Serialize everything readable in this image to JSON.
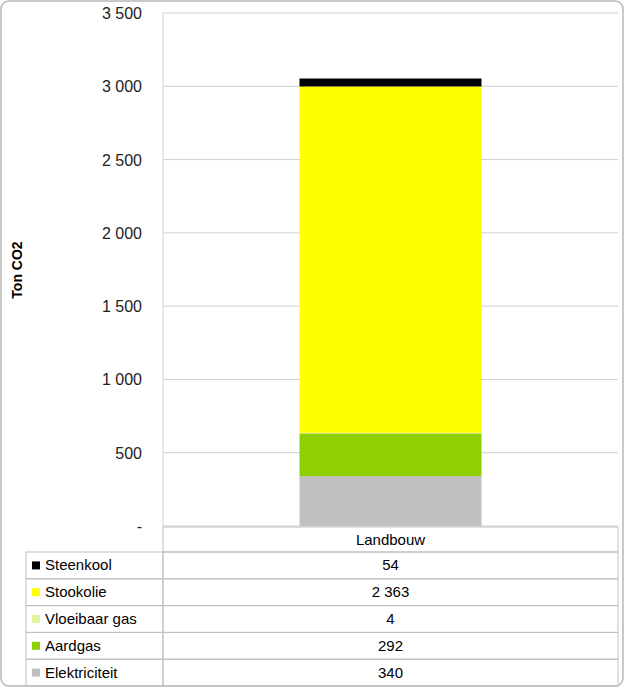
{
  "chart_data": {
    "type": "bar",
    "stacked": true,
    "grid": true,
    "y_label": "Ton CO2",
    "categories": [
      "Landbouw"
    ],
    "series": [
      {
        "name": "Steenkool",
        "color": "#000000",
        "values": [
          54
        ]
      },
      {
        "name": "Stookolie",
        "color": "#ffff00",
        "values": [
          2363
        ],
        "value_labels": [
          "2 363"
        ]
      },
      {
        "name": "Vloeibaar gas",
        "color": "#e2f59e",
        "values": [
          4
        ]
      },
      {
        "name": "Aardgas",
        "color": "#8fd000",
        "values": [
          292
        ]
      },
      {
        "name": "Elektriciteit",
        "color": "#c0c0c0",
        "values": [
          340
        ]
      }
    ],
    "ylim": [
      0,
      3500
    ],
    "yticks": [
      {
        "value": 0,
        "label": "-"
      },
      500,
      {
        "value": 1000,
        "label": "1 000"
      },
      {
        "value": 1500,
        "label": "1 500"
      },
      {
        "value": 2000,
        "label": "2 000"
      },
      {
        "value": 2500,
        "label": "2 500"
      },
      {
        "value": 3000,
        "label": "3 000"
      },
      {
        "value": 3500,
        "label": "3 500"
      }
    ]
  }
}
